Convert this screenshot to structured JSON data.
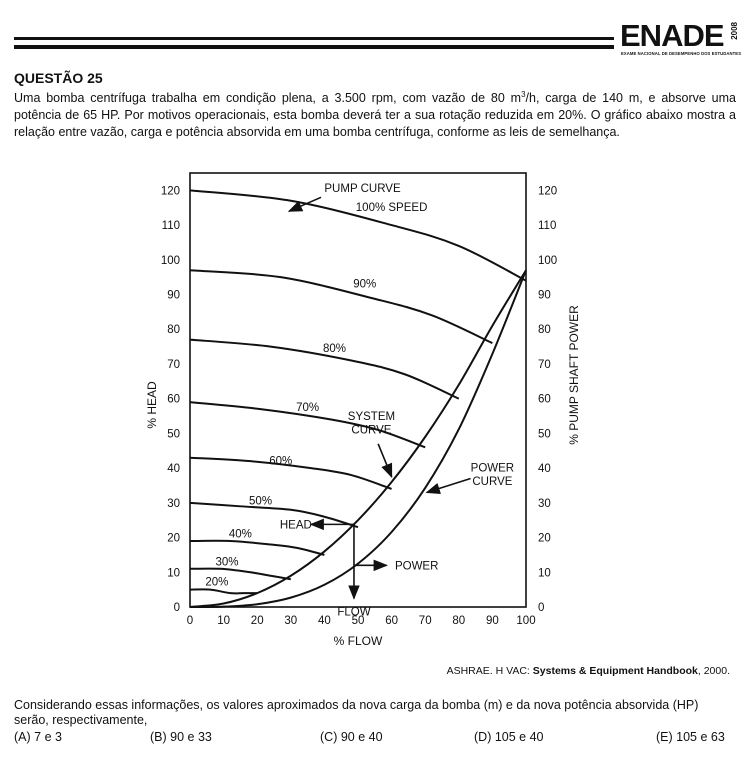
{
  "header": {
    "logo": "ENADE",
    "logo_year": "2008",
    "logo_subtitle": "EXAME NACIONAL DE DESEMPENHO DOS ESTUDANTES"
  },
  "question": {
    "title": "QUESTÃO 25",
    "statement_part1": "Uma bomba centrífuga trabalha em condição plena, a 3.500 rpm, com vazão de 80 m",
    "statement_sup": "3",
    "statement_part2": "/h, carga de 140 m, e absorve uma potência de 65 HP. Por motivos operacionais, esta bomba deverá ter a sua rotação reduzida em 20%. O gráfico abaixo mostra a relação entre vazão, carga e potência absorvida em uma bomba centrífuga, conforme as leis de semelhança.",
    "source_prefix": "ASHRAE. H VAC: ",
    "source_title": "Systems & Equipment Handbook",
    "source_suffix": ", 2000.",
    "prompt": "Considerando essas informações, os valores aproximados da nova carga da bomba (m) e da nova potência absorvida (HP) serão, respectivamente,",
    "options": [
      {
        "label": "(A)",
        "text": "7 e 3"
      },
      {
        "label": "(B)",
        "text": "90 e 33"
      },
      {
        "label": "(C)",
        "text": "90 e 40"
      },
      {
        "label": "(D)",
        "text": "105 e 40"
      },
      {
        "label": "(E)",
        "text": "105 e 63"
      }
    ]
  },
  "chart_data": {
    "type": "line",
    "xlabel": "% FLOW",
    "ylabel_left": "% HEAD",
    "ylabel_right": "% PUMP SHAFT POWER",
    "x_ticks": [
      0,
      10,
      20,
      30,
      40,
      50,
      60,
      70,
      80,
      90,
      100
    ],
    "y_ticks": [
      0,
      10,
      20,
      30,
      40,
      50,
      60,
      70,
      80,
      90,
      100,
      110,
      120
    ],
    "xlim": [
      0,
      100
    ],
    "ylim": [
      0,
      125
    ],
    "pump_curves": [
      {
        "label": "100% SPEED",
        "speed": 100,
        "points": [
          [
            0,
            120
          ],
          [
            30,
            117
          ],
          [
            60,
            110
          ],
          [
            80,
            104
          ],
          [
            100,
            94
          ]
        ]
      },
      {
        "label": "90%",
        "speed": 90,
        "points": [
          [
            0,
            97
          ],
          [
            27,
            95
          ],
          [
            54,
            89
          ],
          [
            72,
            84
          ],
          [
            90,
            76
          ]
        ]
      },
      {
        "label": "80%",
        "speed": 80,
        "points": [
          [
            0,
            77
          ],
          [
            24,
            75
          ],
          [
            48,
            71
          ],
          [
            64,
            67
          ],
          [
            80,
            60
          ]
        ]
      },
      {
        "label": "70%",
        "speed": 70,
        "points": [
          [
            0,
            59
          ],
          [
            21,
            57
          ],
          [
            42,
            54
          ],
          [
            56,
            51
          ],
          [
            70,
            46
          ]
        ]
      },
      {
        "label": "60%",
        "speed": 60,
        "points": [
          [
            0,
            43
          ],
          [
            18,
            42
          ],
          [
            36,
            40
          ],
          [
            48,
            38
          ],
          [
            60,
            34
          ]
        ]
      },
      {
        "label": "50%",
        "speed": 50,
        "points": [
          [
            0,
            30
          ],
          [
            15,
            29
          ],
          [
            30,
            28
          ],
          [
            40,
            26
          ],
          [
            50,
            23
          ]
        ]
      },
      {
        "label": "40%",
        "speed": 40,
        "points": [
          [
            0,
            19
          ],
          [
            12,
            19
          ],
          [
            24,
            18
          ],
          [
            32,
            17
          ],
          [
            40,
            15
          ]
        ]
      },
      {
        "label": "30%",
        "speed": 30,
        "points": [
          [
            0,
            11
          ],
          [
            9,
            11
          ],
          [
            18,
            10
          ],
          [
            24,
            9
          ],
          [
            30,
            8
          ]
        ]
      },
      {
        "label": "20%",
        "speed": 20,
        "points": [
          [
            0,
            5
          ],
          [
            6,
            5
          ],
          [
            12,
            4
          ],
          [
            16,
            4
          ],
          [
            20,
            4
          ]
        ]
      }
    ],
    "system_curve": {
      "label": "SYSTEM CURVE",
      "points": [
        [
          0,
          0
        ],
        [
          10,
          1
        ],
        [
          20,
          4
        ],
        [
          30,
          9
        ],
        [
          40,
          16
        ],
        [
          50,
          25
        ],
        [
          60,
          36
        ],
        [
          70,
          49
        ],
        [
          80,
          64
        ],
        [
          90,
          81
        ],
        [
          100,
          97
        ]
      ]
    },
    "power_curve": {
      "label": "POWER CURVE",
      "points": [
        [
          0,
          0
        ],
        [
          10,
          0.1
        ],
        [
          20,
          0.8
        ],
        [
          30,
          2.7
        ],
        [
          40,
          6.4
        ],
        [
          50,
          12.5
        ],
        [
          60,
          21.6
        ],
        [
          70,
          34.3
        ],
        [
          80,
          51.2
        ],
        [
          90,
          72.9
        ],
        [
          100,
          97
        ]
      ]
    },
    "annotations": [
      "PUMP CURVE",
      "HEAD",
      "POWER",
      "FLOW"
    ]
  }
}
